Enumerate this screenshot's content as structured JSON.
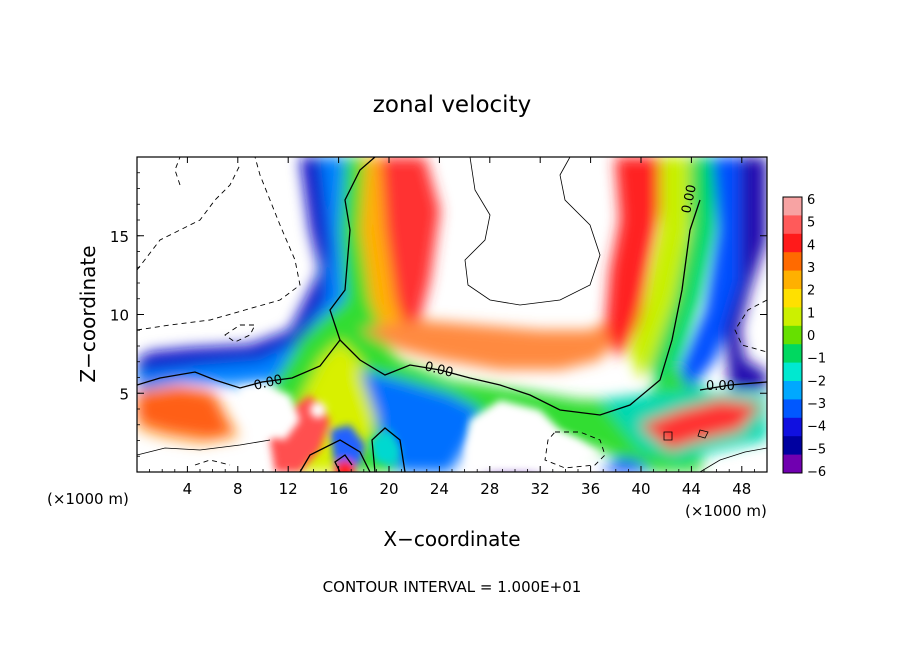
{
  "chart_data": {
    "type": "heatmap",
    "title": "zonal velocity",
    "xlabel": "X−coordinate",
    "ylabel": "Z−coordinate",
    "x_unit_label": "(×1000 m)",
    "z_unit_label": "(×1000 m)",
    "footer": "CONTOUR INTERVAL = 1.000E+01",
    "xlim": [
      0,
      50
    ],
    "ylim": [
      0,
      20
    ],
    "x_ticks": [
      "4",
      "8",
      "12",
      "16",
      "20",
      "24",
      "28",
      "32",
      "36",
      "40",
      "44",
      "48"
    ],
    "y_ticks": [
      "5",
      "10",
      "15"
    ],
    "colorbar": {
      "labels": [
        "6",
        "5",
        "4",
        "3",
        "2",
        "1",
        "0",
        "−1",
        "−2",
        "−3",
        "−4",
        "−5",
        "−6"
      ],
      "colors": [
        "#f7a3a3",
        "#ff5a5a",
        "#ff1a1a",
        "#ff6a00",
        "#ffb000",
        "#ffe000",
        "#ccf000",
        "#66e000",
        "#00d860",
        "#00e8d0",
        "#00a8ff",
        "#0058ff",
        "#1010e0",
        "#0000a0",
        "#7000b0"
      ]
    },
    "contour_labels": [
      {
        "text": "0.00"
      },
      {
        "text": "0.00"
      },
      {
        "text": "0.00"
      },
      {
        "text": "0.00"
      }
    ],
    "description": "Color-filled field of zonal velocity over x 0–50 km and z 0–20 km with a zero contour; cool colors near ~5 km and tall warm column near x≈40 km."
  }
}
